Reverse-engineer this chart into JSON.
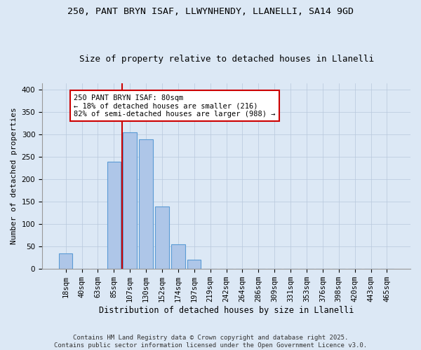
{
  "title1": "250, PANT BRYN ISAF, LLWYNHENDY, LLANELLI, SA14 9GD",
  "title2": "Size of property relative to detached houses in Llanelli",
  "xlabel": "Distribution of detached houses by size in Llanelli",
  "ylabel": "Number of detached properties",
  "categories": [
    "18sqm",
    "40sqm",
    "63sqm",
    "85sqm",
    "107sqm",
    "130sqm",
    "152sqm",
    "174sqm",
    "197sqm",
    "219sqm",
    "242sqm",
    "264sqm",
    "286sqm",
    "309sqm",
    "331sqm",
    "353sqm",
    "376sqm",
    "398sqm",
    "420sqm",
    "443sqm",
    "465sqm"
  ],
  "values": [
    35,
    0,
    0,
    240,
    305,
    290,
    140,
    55,
    20,
    0,
    0,
    0,
    0,
    0,
    0,
    0,
    0,
    0,
    0,
    0,
    0
  ],
  "bar_color": "#aec6e8",
  "bar_edge_color": "#5b9bd5",
  "vline_color": "#cc0000",
  "vline_x_index": 3.5,
  "annotation_text": "250 PANT BRYN ISAF: 80sqm\n← 18% of detached houses are smaller (216)\n82% of semi-detached houses are larger (988) →",
  "annotation_box_color": "#ffffff",
  "annotation_box_edge_color": "#cc0000",
  "ylim": [
    0,
    415
  ],
  "yticks": [
    0,
    50,
    100,
    150,
    200,
    250,
    300,
    350,
    400
  ],
  "footer_text": "Contains HM Land Registry data © Crown copyright and database right 2025.\nContains public sector information licensed under the Open Government Licence v3.0.",
  "background_color": "#dce8f5",
  "title_fontsize": 9.5,
  "subtitle_fontsize": 9,
  "xlabel_fontsize": 8.5,
  "ylabel_fontsize": 8,
  "tick_fontsize": 7.5,
  "annot_fontsize": 7.5,
  "footer_fontsize": 6.5
}
